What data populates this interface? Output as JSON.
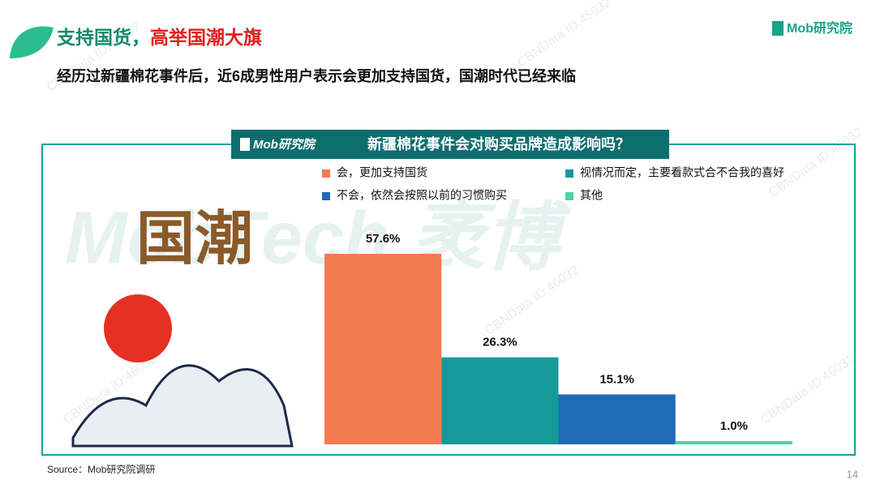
{
  "header": {
    "title_part1": "支持国货，",
    "title_part2": "高举国潮大旗",
    "subtitle": "经历过新疆棉花事件后，近6成男性用户表示会更加支持国货，国潮时代已经来临",
    "logo": "Mob研究院"
  },
  "watermark": {
    "brand": "MobTech 袤博",
    "id": "CBNData ID:46032"
  },
  "illustration": {
    "text": "国潮"
  },
  "chart_data": {
    "type": "bar",
    "title": "新疆棉花事件会对购买品牌造成影响吗？",
    "logo": "Mob研究院",
    "categories": [
      "会，更加支持国货",
      "视情况而定，主要看款式合不合我的喜好",
      "不会，依然会按照以前的习惯购买",
      "其他"
    ],
    "values": [
      57.6,
      26.3,
      15.1,
      1.0
    ],
    "value_labels": [
      "57.6%",
      "26.3%",
      "15.1%",
      "1.0%"
    ],
    "colors": [
      "#f47c50",
      "#17999a",
      "#1f6bb5",
      "#4fd1a5"
    ]
  },
  "footer": {
    "source": "Source：Mob研究院调研",
    "page_number": "14"
  }
}
